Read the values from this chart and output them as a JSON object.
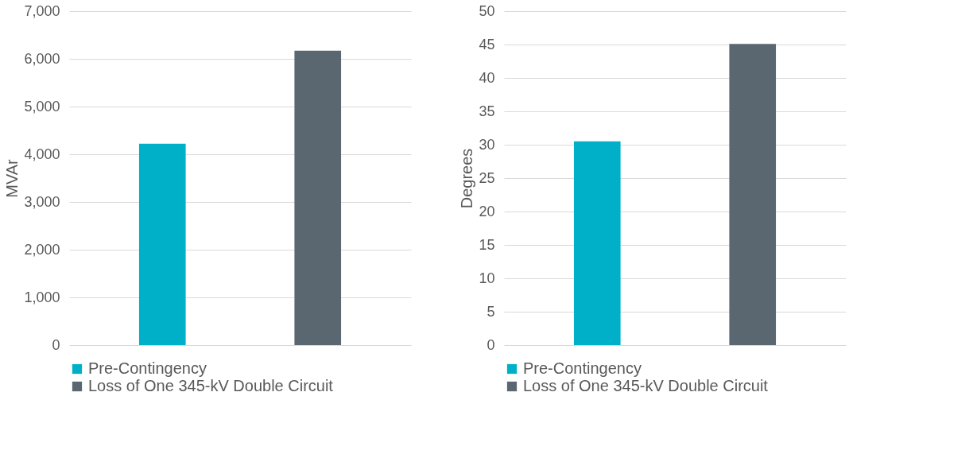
{
  "chart_data": [
    {
      "type": "bar",
      "ylabel": "MVAr",
      "categories": [
        null
      ],
      "ylim": [
        0,
        7000
      ],
      "yticks": [
        {
          "value": 0,
          "label": "0"
        },
        {
          "value": 1000,
          "label": "1,000"
        },
        {
          "value": 2000,
          "label": "2,000"
        },
        {
          "value": 3000,
          "label": "3,000"
        },
        {
          "value": 4000,
          "label": "4,000"
        },
        {
          "value": 5000,
          "label": "5,000"
        },
        {
          "value": 6000,
          "label": "6,000"
        },
        {
          "value": 7000,
          "label": "7,000"
        }
      ],
      "grid": "y",
      "legend": "bottom",
      "series": [
        {
          "name": "Pre-Contingency",
          "color": "#00b0c8",
          "values": [
            4220
          ]
        },
        {
          "name": "Loss of One 345-kV Double Circuit",
          "color": "#5a6670",
          "values": [
            6170
          ]
        }
      ]
    },
    {
      "type": "bar",
      "ylabel": "Degrees",
      "categories": [
        null
      ],
      "ylim": [
        0,
        50
      ],
      "yticks": [
        0,
        5,
        10,
        15,
        20,
        25,
        30,
        35,
        40,
        45,
        50
      ],
      "grid": "y",
      "legend": "bottom",
      "series": [
        {
          "name": "Pre-Contingency",
          "color": "#00b0c8",
          "values": [
            30.5
          ]
        },
        {
          "name": "Loss of One 345-kV Double Circuit",
          "color": "#5a6670",
          "values": [
            45.1
          ]
        }
      ]
    }
  ]
}
